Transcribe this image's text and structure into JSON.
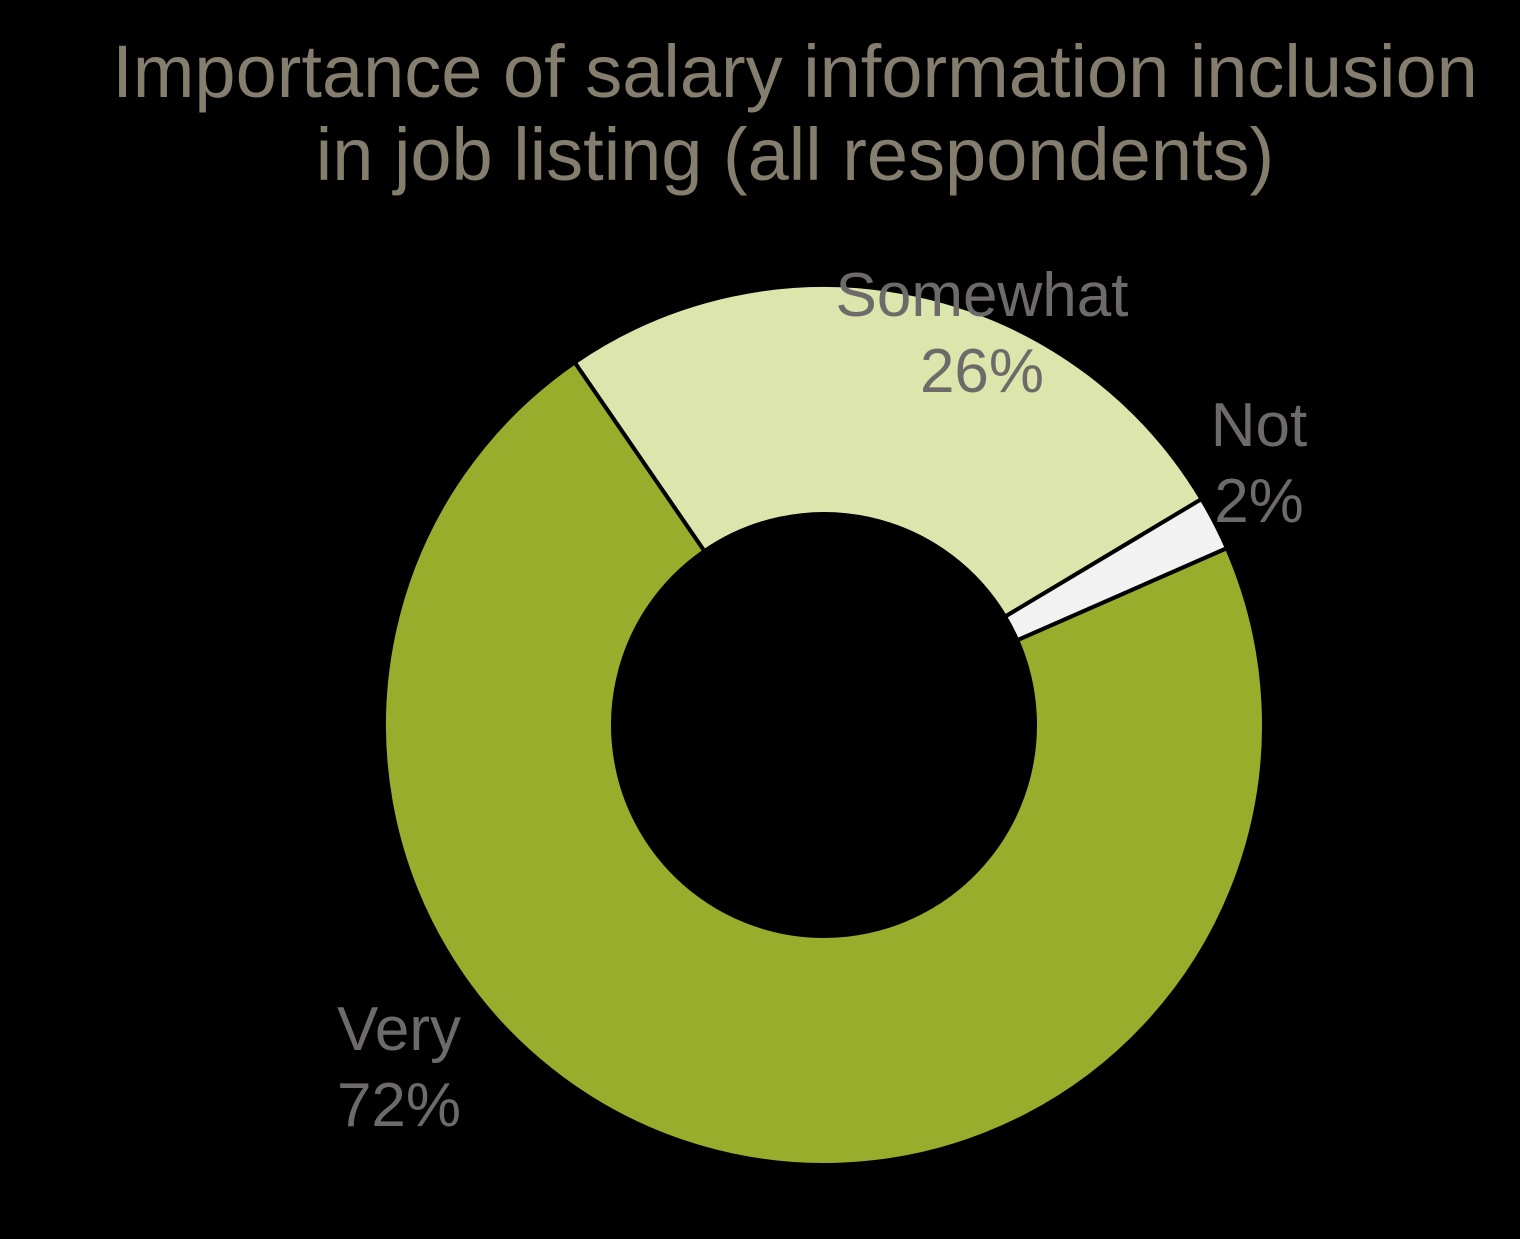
{
  "title": {
    "line1": "Importance of salary information inclusion",
    "line2": "in job listing (all respondents)"
  },
  "chart_data": {
    "type": "pie",
    "variant": "donut",
    "title": "Importance of salary information inclusion in job listing (all respondents)",
    "categories": [
      "Very",
      "Somewhat",
      "Not"
    ],
    "values": [
      72,
      26,
      2
    ],
    "unit": "%",
    "segments": [
      {
        "label": "Very",
        "value": 72,
        "display": "72%",
        "color": "#99AD2C"
      },
      {
        "label": "Somewhat",
        "value": 26,
        "display": "26%",
        "color": "#DCE6AC"
      },
      {
        "label": "Not",
        "value": 2,
        "display": "2%",
        "color": "#F2F2F2"
      }
    ],
    "rotation_deg": 66.3,
    "direction": "clockwise",
    "hole_ratio": 0.48,
    "legend": "none",
    "background": "#000000",
    "title_color": "#857D6E",
    "label_color": "#6F6A6A",
    "separator_color": "#000000"
  },
  "labels": {
    "very": {
      "name": "Very",
      "pct": "72%"
    },
    "somewhat": {
      "name": "Somewhat",
      "pct": "26%"
    },
    "not": {
      "name": "Not",
      "pct": "2%"
    }
  }
}
